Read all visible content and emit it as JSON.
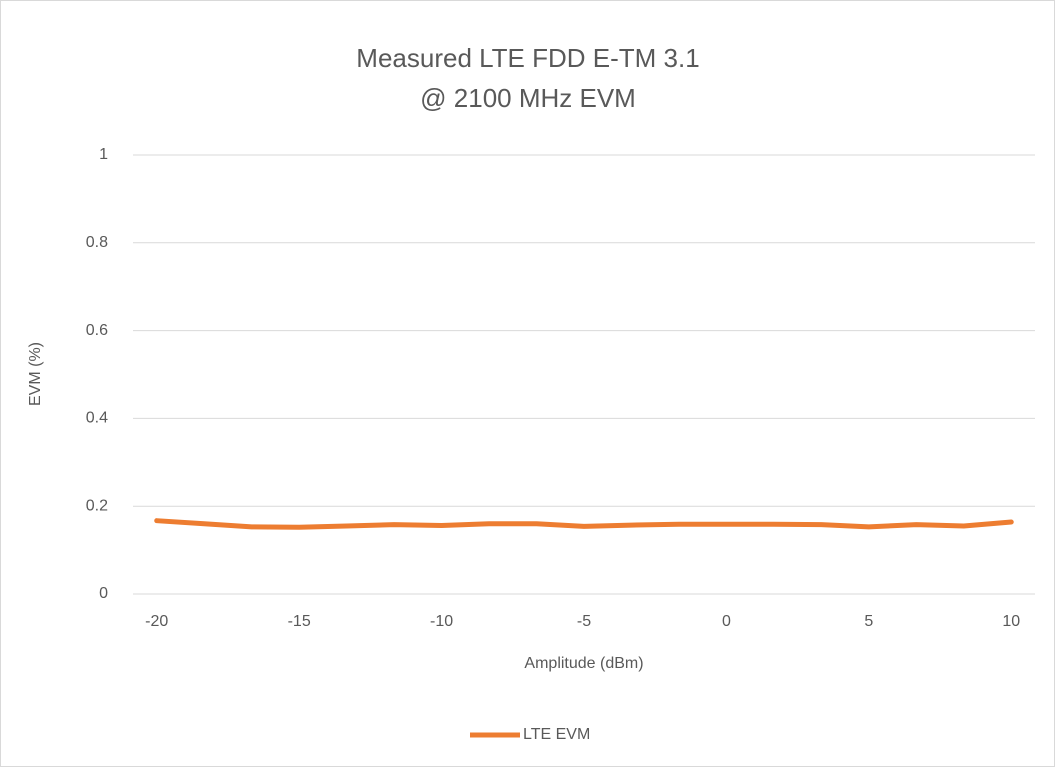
{
  "chart_data": {
    "type": "line",
    "title": [
      "Measured LTE FDD E-TM 3.1",
      "@ 2100 MHz EVM"
    ],
    "x_label": "Amplitude (dBm)",
    "y_label": "EVM (%)",
    "categories": [
      "-20",
      null,
      null,
      "-15",
      null,
      null,
      "-10",
      null,
      null,
      "-5",
      null,
      null,
      "0",
      null,
      null,
      "5",
      null,
      null,
      "10"
    ],
    "series": [
      {
        "name": "LTE EVM",
        "color": "#ed7d31",
        "values": [
          0.167,
          0.16,
          0.153,
          0.152,
          0.155,
          0.158,
          0.156,
          0.16,
          0.16,
          0.154,
          0.157,
          0.159,
          0.159,
          0.159,
          0.158,
          0.153,
          0.158,
          0.155,
          0.164
        ]
      }
    ],
    "ylim": [
      0,
      1
    ],
    "yticks": [
      0,
      0.2,
      0.4,
      0.6,
      0.8,
      1
    ],
    "grid": true,
    "legend": "bottom"
  }
}
